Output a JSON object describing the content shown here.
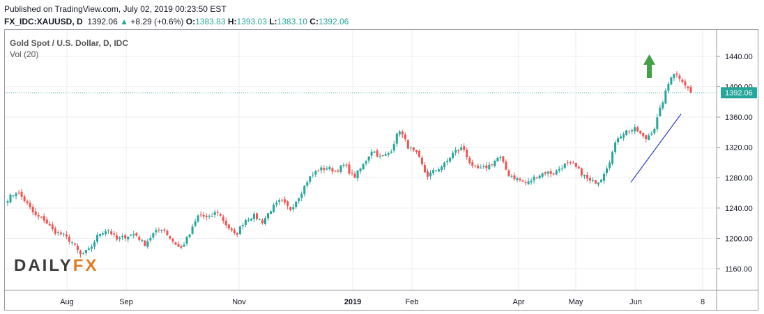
{
  "header": {
    "published": "Published on TradingView.com, July 02, 2019 00:23:50 EST",
    "symbol": "FX_IDC:XAUUSD, D",
    "last": "1392.06",
    "change": "+8.29 (+0.6%)",
    "o_label": "O:",
    "o": "1383.83",
    "h_label": "H:",
    "h": "1393.03",
    "l_label": "L:",
    "l": "1383.10",
    "c_label": "C:",
    "c": "1392.06"
  },
  "colors": {
    "up": "#26a69a",
    "down": "#ef5350",
    "trend": "#2b3ec4",
    "arrow": "#43a047",
    "price_line": "#26a69a"
  },
  "logo_text": "DAILYFX",
  "chart_data": {
    "type": "candlestick",
    "title": "Gold Spot / U.S. Dollar, D, IDC",
    "indicator": "Vol (20)",
    "ylim": [
      1130,
      1460
    ],
    "y_ticks": [
      "1160.00",
      "1200.00",
      "1240.00",
      "1280.00",
      "1320.00",
      "1360.00",
      "1400.00",
      "1440.00"
    ],
    "x_ticks": [
      "Aug",
      "Sep",
      "Nov",
      "2019",
      "Feb",
      "Apr",
      "May",
      "Jun",
      "8"
    ],
    "last_price": "1392.06",
    "trend_line": {
      "from": 1274,
      "to": 1364
    },
    "close_path": [
      1252,
      1262,
      1248,
      1230,
      1225,
      1210,
      1205,
      1196,
      1178,
      1185,
      1206,
      1212,
      1198,
      1203,
      1206,
      1192,
      1206,
      1214,
      1198,
      1186,
      1206,
      1232,
      1226,
      1236,
      1218,
      1203,
      1224,
      1230,
      1222,
      1240,
      1250,
      1238,
      1256,
      1278,
      1290,
      1293,
      1289,
      1297,
      1280,
      1296,
      1317,
      1306,
      1314,
      1344,
      1320,
      1310,
      1282,
      1290,
      1298,
      1314,
      1320,
      1293,
      1291,
      1297,
      1308,
      1284,
      1278,
      1272,
      1282,
      1287,
      1286,
      1297,
      1298,
      1286,
      1274,
      1276,
      1300,
      1334,
      1342,
      1344,
      1330,
      1346,
      1384,
      1420,
      1410,
      1392
    ]
  }
}
